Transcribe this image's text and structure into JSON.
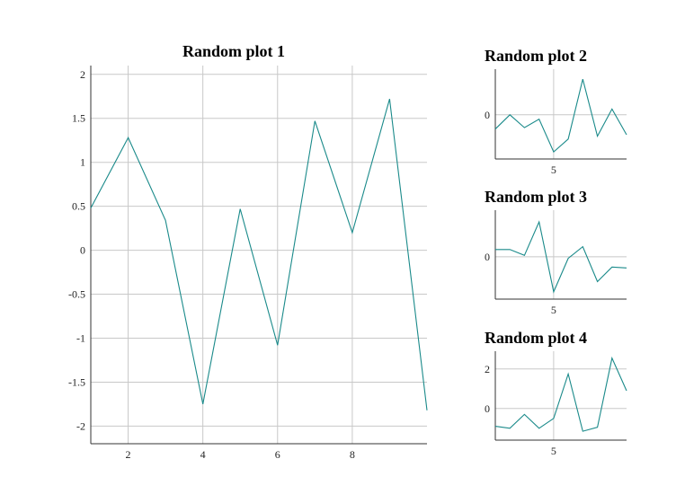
{
  "chart_data": [
    {
      "type": "line",
      "title": "Random plot 1",
      "x": [
        1,
        2,
        3,
        4,
        5,
        6,
        7,
        8,
        9,
        10
      ],
      "series": [
        {
          "values": [
            0.48,
            1.28,
            0.34,
            -1.75,
            0.47,
            -1.08,
            1.47,
            0.2,
            1.72,
            -1.82
          ],
          "color": "#1a8a8a"
        }
      ],
      "xlim": [
        1,
        10
      ],
      "ylim": [
        -2.2,
        2.1
      ],
      "xticks": [
        2,
        4,
        6,
        8
      ],
      "yticks": [
        2,
        1.5,
        1,
        0.5,
        0,
        -0.5,
        -1,
        -1.5,
        -2
      ],
      "grid": true
    },
    {
      "type": "line",
      "title": "Random plot 2",
      "x": [
        1,
        2,
        3,
        4,
        5,
        6,
        7,
        8,
        9,
        10
      ],
      "series": [
        {
          "values": [
            -0.5,
            0.0,
            -0.45,
            -0.15,
            -1.3,
            -0.85,
            1.25,
            -0.75,
            0.2,
            -0.7
          ],
          "color": "#1a8a8a"
        }
      ],
      "xlim": [
        1,
        10
      ],
      "ylim": [
        -1.55,
        1.6
      ],
      "xticks": [
        5
      ],
      "yticks": [
        0
      ],
      "grid": true
    },
    {
      "type": "line",
      "title": "Random plot 3",
      "x": [
        1,
        2,
        3,
        4,
        5,
        6,
        7,
        8,
        9,
        10
      ],
      "series": [
        {
          "values": [
            0.25,
            0.25,
            0.05,
            1.2,
            -1.2,
            -0.05,
            0.35,
            -0.85,
            -0.35,
            -0.38
          ],
          "color": "#1a8a8a"
        }
      ],
      "xlim": [
        1,
        10
      ],
      "ylim": [
        -1.45,
        1.6
      ],
      "xticks": [
        5
      ],
      "yticks": [
        0
      ],
      "grid": true
    },
    {
      "type": "line",
      "title": "Random plot 4",
      "x": [
        1,
        2,
        3,
        4,
        5,
        6,
        7,
        8,
        9,
        10
      ],
      "series": [
        {
          "values": [
            -0.9,
            -1.0,
            -0.3,
            -1.0,
            -0.5,
            1.75,
            -1.15,
            -0.95,
            2.55,
            0.9
          ],
          "color": "#1a8a8a"
        }
      ],
      "xlim": [
        1,
        10
      ],
      "ylim": [
        -1.6,
        2.9
      ],
      "xticks": [
        5
      ],
      "yticks": [
        2,
        0
      ],
      "grid": true
    }
  ]
}
